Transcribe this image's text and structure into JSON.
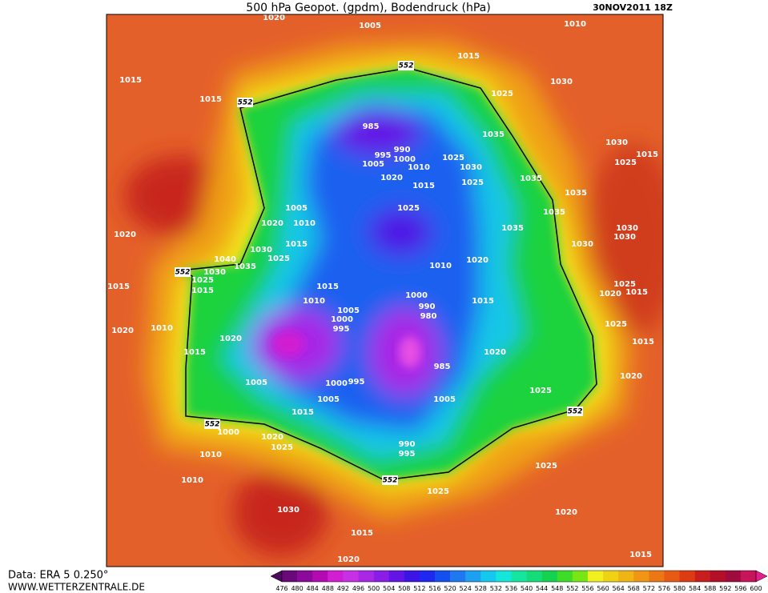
{
  "header": {
    "title": "500 hPa Geopot. (gpdm), Bodendruck (hPa)",
    "date": "30NOV2011 18Z"
  },
  "footer": {
    "source": "Data: ERA 5 0.250°",
    "site": "WWW.WETTERZENTRALE.DE"
  },
  "colorbar": {
    "levels": [
      476,
      480,
      484,
      488,
      492,
      496,
      500,
      504,
      508,
      512,
      516,
      520,
      524,
      528,
      532,
      536,
      540,
      544,
      548,
      552,
      556,
      560,
      564,
      568,
      572,
      576,
      580,
      584,
      588,
      592,
      596,
      600
    ],
    "colors": [
      "#4b0a5a",
      "#6a0a7a",
      "#8c0a9a",
      "#b40ab4",
      "#d21ed2",
      "#c830e6",
      "#a828e6",
      "#8a1ee6",
      "#6414e6",
      "#3c14e6",
      "#1e28f0",
      "#1450f0",
      "#1e78f0",
      "#1ea0f0",
      "#14c8f0",
      "#14e6dc",
      "#14e6a0",
      "#14dc78",
      "#14d250",
      "#3cdc28",
      "#78e614",
      "#f0f01e",
      "#f0d214",
      "#f0b414",
      "#f09614",
      "#eb7814",
      "#e65a14",
      "#dc3c14",
      "#c81e1e",
      "#b40f28",
      "#a00a3c",
      "#c8145a",
      "#e61e8c"
    ]
  },
  "map_labels": [
    "1005",
    "1020",
    "1010",
    "1015",
    "1015",
    "552",
    "552",
    "1015",
    "1030",
    "1025",
    "985",
    "1035",
    "1030",
    "1015",
    "990",
    "995",
    "1000",
    "1005",
    "1025",
    "1030",
    "1010",
    "1025",
    "1020",
    "1015",
    "1025",
    "1035",
    "1035",
    "1005",
    "1025",
    "1035",
    "1020",
    "1010",
    "1035",
    "1030",
    "1020",
    "1030",
    "1015",
    "1030",
    "1040",
    "1025",
    "1030",
    "1035",
    "1020",
    "1010",
    "552",
    "1030",
    "1025",
    "1015",
    "1015",
    "1015",
    "1025",
    "1020",
    "1015",
    "1000",
    "1010",
    "1015",
    "990",
    "1005",
    "980",
    "1000",
    "995",
    "1025",
    "1010",
    "1020",
    "1020",
    "1015",
    "1020",
    "1015",
    "985",
    "1020",
    "1005",
    "1000",
    "995",
    "1025",
    "1005",
    "1005",
    "1015",
    "552",
    "552",
    "1000",
    "1020",
    "1010",
    "1025",
    "990",
    "995",
    "1025",
    "552",
    "1010",
    "1025",
    "1030",
    "1020",
    "1015",
    "1020",
    "1015"
  ]
}
